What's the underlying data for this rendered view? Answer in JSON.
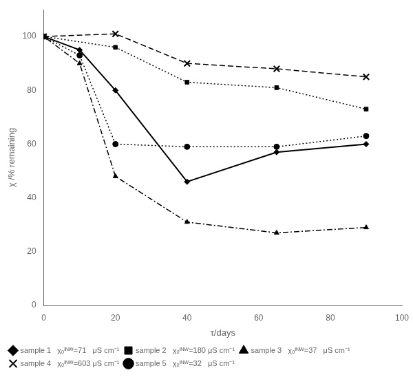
{
  "chart_data": {
    "type": "line",
    "xlabel": "τ/days",
    "ylabel": "χ /% remaining",
    "xlim": [
      0,
      100
    ],
    "ylim": [
      0,
      110
    ],
    "xticks": [
      0,
      20,
      40,
      60,
      80,
      100
    ],
    "yticks": [
      0,
      20,
      40,
      60,
      80,
      100
    ],
    "grid": false,
    "legend": "lower left",
    "series": [
      {
        "name": "sample 1   χₒᴵᴺᵂ=71   μS cm⁻¹",
        "color": "#000000",
        "marker": "diamond",
        "line_style": "solid",
        "x": [
          0,
          10,
          20,
          40,
          65,
          90
        ],
        "values": [
          100,
          95,
          80,
          46,
          57,
          60
        ]
      },
      {
        "name": "sample 2   χₒᴵᴺᵂ=180 μS cm⁻¹",
        "color": "#000000",
        "marker": "square",
        "line_style": "dotted",
        "x": [
          0,
          20,
          40,
          65,
          90
        ],
        "values": [
          100,
          96,
          83,
          81,
          73
        ]
      },
      {
        "name": "sample 3   χₒᴵᴺᵂ=37   μS cm⁻¹",
        "color": "#000000",
        "marker": "triangle",
        "line_style": "dashdot",
        "x": [
          0,
          10,
          20,
          40,
          65,
          90
        ],
        "values": [
          100,
          90,
          48,
          31,
          27,
          29
        ]
      },
      {
        "name": "sample 4   χₒᴵᴺᵂ=603 μS cm⁻¹",
        "color": "#000000",
        "marker": "x",
        "line_style": "dashed",
        "x": [
          0,
          20,
          40,
          65,
          90
        ],
        "values": [
          100,
          101,
          90,
          88,
          85
        ]
      },
      {
        "name": "sample 5   χₒᴵᴺᵂ=32   μS cm⁻¹",
        "color": "#000000",
        "marker": "circle",
        "line_style": "dotted",
        "x": [
          0,
          10,
          20,
          40,
          65,
          90
        ],
        "values": [
          100,
          93,
          60,
          59,
          59,
          63
        ]
      }
    ]
  }
}
